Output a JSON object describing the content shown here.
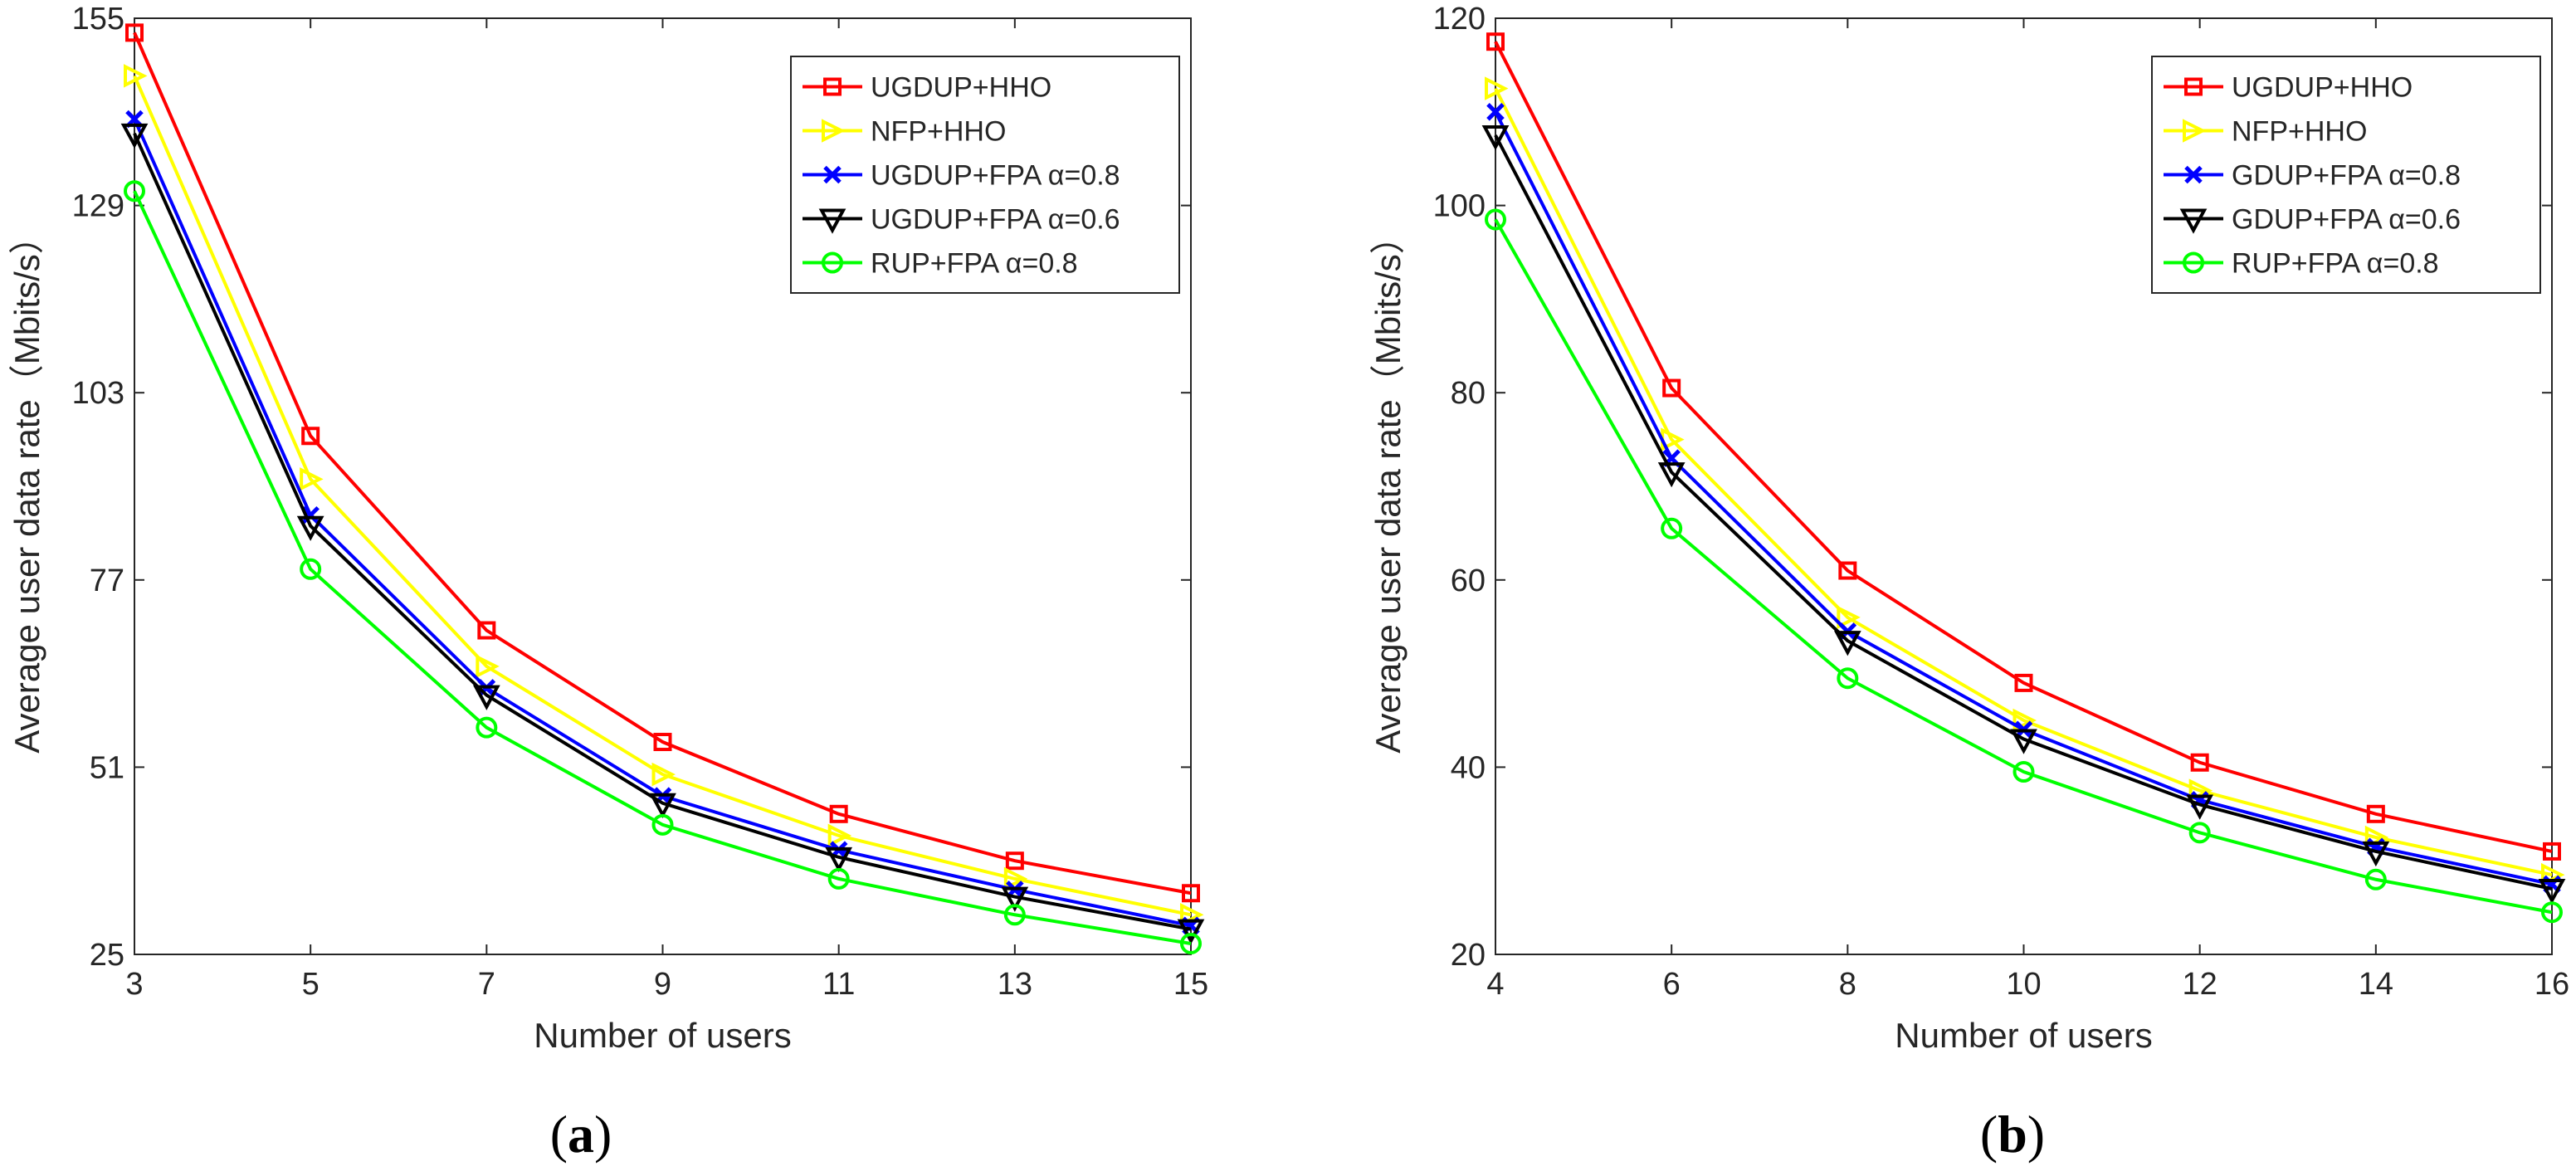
{
  "chart_data": [
    {
      "type": "line",
      "panel_label": "(a)",
      "caption_open": "(",
      "caption_letter": "a",
      "caption_close": ")",
      "xlabel": "Number of users",
      "ylabel": "Average user data rate（Mbits/s）",
      "xlim": [
        3,
        15
      ],
      "ylim": [
        25,
        155
      ],
      "xticks": [
        3,
        5,
        7,
        9,
        11,
        13,
        15
      ],
      "yticks": [
        25,
        51,
        77,
        103,
        129,
        155
      ],
      "grid": false,
      "legend_position": "top-right",
      "x": [
        3,
        5,
        7,
        9,
        11,
        13,
        15
      ],
      "series": [
        {
          "name": "UGDUP+HHO",
          "color": "#ff0000",
          "marker": "square",
          "values": [
            153.0,
            97.0,
            70.0,
            54.5,
            44.5,
            38.0,
            33.5
          ]
        },
        {
          "name": "NFP+HHO",
          "color": "#ffff00",
          "marker": "triangle-right",
          "values": [
            147.0,
            91.0,
            65.0,
            50.0,
            41.5,
            35.5,
            30.5
          ]
        },
        {
          "name": "UGDUP+FPA α=0.8",
          "color": "#0000ff",
          "marker": "x",
          "values": [
            141.0,
            86.0,
            62.0,
            47.0,
            39.5,
            34.0,
            29.0
          ]
        },
        {
          "name": "UGDUP+FPA α=0.6",
          "color": "#000000",
          "marker": "triangle-down",
          "values": [
            139.0,
            84.5,
            61.0,
            46.0,
            38.5,
            33.0,
            28.5
          ]
        },
        {
          "name": "RUP+FPA α=0.8",
          "color": "#00ff00",
          "marker": "circle",
          "values": [
            131.0,
            78.5,
            56.5,
            43.0,
            35.5,
            30.5,
            26.5
          ]
        }
      ]
    },
    {
      "type": "line",
      "panel_label": "(b)",
      "caption_open": "(",
      "caption_letter": "b",
      "caption_close": ")",
      "xlabel": "Number of users",
      "ylabel": "Average user data rate（Mbits/s）",
      "xlim": [
        4,
        16
      ],
      "ylim": [
        20,
        120
      ],
      "xticks": [
        4,
        6,
        8,
        10,
        12,
        14,
        16
      ],
      "yticks": [
        20,
        40,
        60,
        80,
        100,
        120
      ],
      "grid": false,
      "legend_position": "top-right",
      "x": [
        4,
        6,
        8,
        10,
        12,
        14,
        16
      ],
      "series": [
        {
          "name": "UGDUP+HHO",
          "color": "#ff0000",
          "marker": "square",
          "values": [
            117.5,
            80.5,
            61.0,
            49.0,
            40.5,
            35.0,
            31.0
          ]
        },
        {
          "name": "NFP+HHO",
          "color": "#ffff00",
          "marker": "triangle-right",
          "values": [
            112.5,
            75.0,
            56.0,
            45.0,
            37.5,
            32.5,
            28.5
          ]
        },
        {
          "name": "GDUP+FPA α=0.8",
          "color": "#0000ff",
          "marker": "x",
          "values": [
            110.0,
            73.0,
            54.5,
            44.0,
            36.5,
            31.5,
            27.5
          ]
        },
        {
          "name": "GDUP+FPA α=0.6",
          "color": "#000000",
          "marker": "triangle-down",
          "values": [
            107.5,
            71.5,
            53.5,
            43.0,
            36.0,
            31.0,
            27.0
          ]
        },
        {
          "name": "RUP+FPA α=0.8",
          "color": "#00ff00",
          "marker": "circle",
          "values": [
            98.5,
            65.5,
            49.5,
            39.5,
            33.0,
            28.0,
            24.5
          ]
        }
      ]
    }
  ]
}
